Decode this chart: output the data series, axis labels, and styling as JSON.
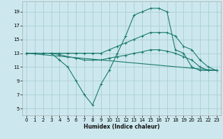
{
  "xlabel": "Humidex (Indice chaleur)",
  "background_color": "#cce8ee",
  "grid_color": "#aacdd4",
  "line_color": "#1a7a6e",
  "xlim": [
    -0.5,
    23.5
  ],
  "ylim": [
    4.0,
    20.5
  ],
  "xticks": [
    0,
    1,
    2,
    3,
    4,
    5,
    6,
    7,
    8,
    9,
    10,
    11,
    12,
    13,
    14,
    15,
    16,
    17,
    18,
    19,
    20,
    21,
    22,
    23
  ],
  "yticks": [
    5,
    7,
    9,
    11,
    13,
    15,
    17,
    19
  ],
  "lines": [
    {
      "x": [
        0,
        1,
        2,
        3,
        4,
        5,
        6,
        7,
        8,
        9,
        10,
        11,
        12,
        13,
        14,
        15,
        16,
        17,
        18,
        19,
        20,
        21,
        22,
        23
      ],
      "y": [
        13,
        13,
        13,
        13,
        12,
        11,
        9,
        7,
        5.5,
        8.5,
        10.5,
        13,
        15.5,
        18.5,
        19,
        19.5,
        19.5,
        19,
        13.5,
        13,
        11,
        10.5,
        10.5,
        10.5
      ]
    },
    {
      "x": [
        0,
        1,
        2,
        3,
        4,
        5,
        6,
        7,
        8,
        9,
        10,
        11,
        12,
        13,
        14,
        15,
        16,
        17,
        18,
        19,
        20,
        21,
        22,
        23
      ],
      "y": [
        13,
        13,
        13,
        13,
        13,
        13,
        13,
        13,
        13,
        13,
        13.5,
        14,
        14.5,
        15,
        15.5,
        16,
        16,
        16,
        15.5,
        14,
        13.5,
        12,
        11,
        10.5
      ]
    },
    {
      "x": [
        0,
        1,
        2,
        3,
        4,
        5,
        6,
        7,
        8,
        9,
        10,
        11,
        12,
        13,
        14,
        15,
        16,
        17,
        18,
        19,
        20,
        21,
        22,
        23
      ],
      "y": [
        13,
        13,
        13,
        13,
        12.8,
        12.5,
        12.3,
        12,
        12,
        12,
        12.3,
        12.5,
        12.7,
        13,
        13.2,
        13.5,
        13.5,
        13.3,
        13,
        12.5,
        12,
        11,
        10.5,
        10.5
      ]
    },
    {
      "x": [
        0,
        23
      ],
      "y": [
        13,
        10.5
      ]
    }
  ]
}
